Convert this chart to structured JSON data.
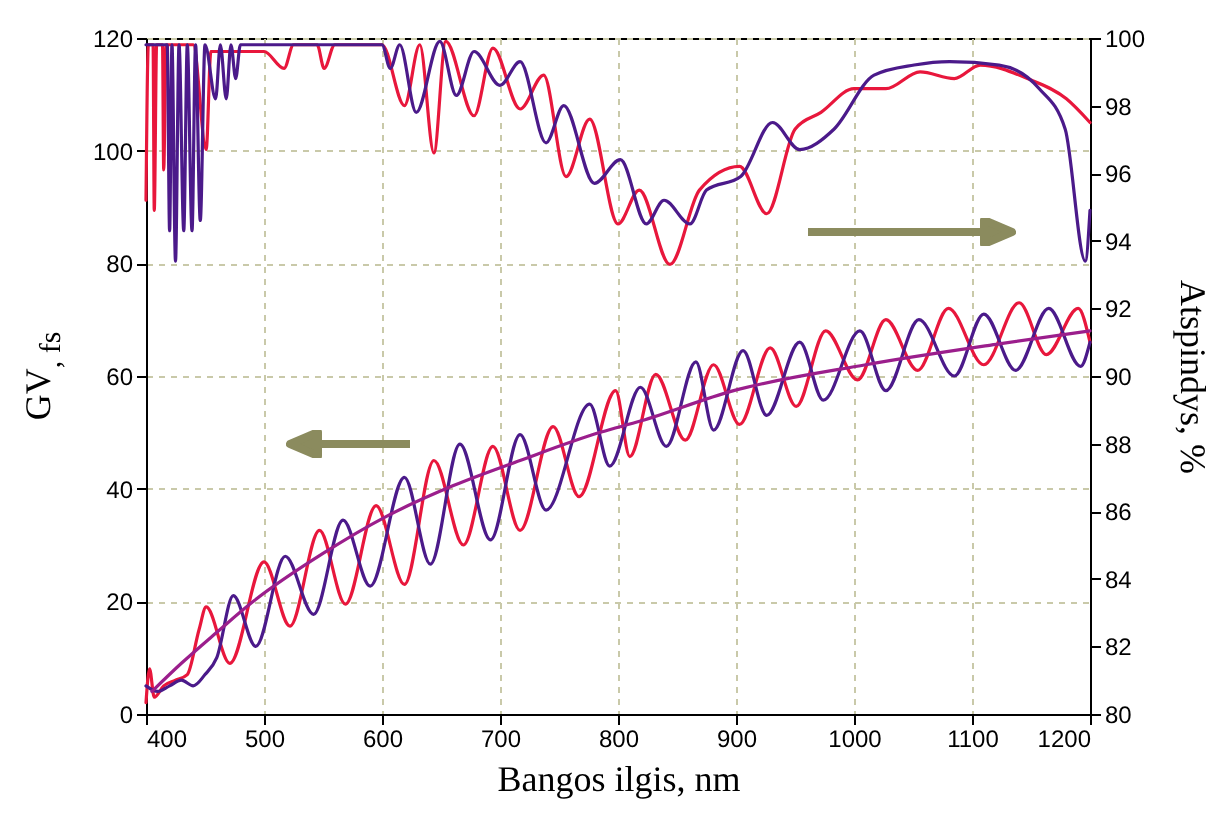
{
  "chart_data": {
    "type": "line",
    "xlabel": "Bangos ilgis, nm",
    "ylabel": "GV$_{, fs}$",
    "y2label": "Atspindys, %",
    "xlim": [
      400,
      1200
    ],
    "xticks": [
      400,
      500,
      600,
      700,
      800,
      900,
      1000,
      1100,
      1200
    ],
    "ylim": [
      0,
      120
    ],
    "yticks": [
      0,
      20,
      40,
      60,
      80,
      100,
      120
    ],
    "y2lim": [
      80,
      100
    ],
    "y2ticks": [
      80,
      82,
      84,
      86,
      88,
      90,
      92,
      94,
      96,
      98,
      100
    ],
    "grid": true,
    "series": [
      {
        "color": "#e8173c",
        "x": [
          400,
          403,
          407,
          415,
          425,
          435,
          445,
          451,
          471,
          500,
          522,
          547,
          569,
          595,
          619,
          644,
          669,
          694,
          717,
          745,
          767,
          798,
          810,
          832,
          857,
          881,
          903,
          929,
          951,
          976,
          1003,
          1027,
          1054,
          1080,
          1110,
          1140,
          1163,
          1190,
          1200
        ],
        "values": [
          2,
          8,
          3,
          5,
          6,
          7,
          15,
          19,
          9,
          27,
          15.6,
          32.6,
          19.5,
          37,
          23,
          45,
          30,
          47.5,
          32.6,
          51,
          38.6,
          57.4,
          45.7,
          60.3,
          48.6,
          62,
          51.4,
          65,
          54.6,
          68,
          59.3,
          70,
          61,
          72,
          62,
          73,
          63.8,
          72,
          66
        ]
      },
      {
        "color": "#4b1a8a",
        "x": [
          400,
          410,
          420,
          430,
          440,
          450,
          460,
          474,
          493,
          518,
          542,
          567,
          590,
          619,
          641,
          666,
          692,
          717,
          739,
          776,
          793,
          819,
          841,
          866,
          881,
          906,
          926,
          954,
          974,
          1005,
          1027,
          1055,
          1085,
          1110,
          1137,
          1165,
          1192,
          1200
        ],
        "values": [
          5,
          4,
          5,
          6,
          5,
          7,
          10,
          21,
          12,
          28,
          17.7,
          34.4,
          22.7,
          42,
          26.6,
          47.9,
          30.9,
          49.6,
          36.2,
          55,
          44,
          58,
          47.5,
          62.5,
          50.4,
          64.5,
          53,
          66,
          55.7,
          68,
          57.4,
          70,
          60,
          71,
          61,
          72,
          61.7,
          66
        ]
      },
      {
        "color": "#9b1e8c",
        "x": [
          405,
          430,
          460,
          491,
          550,
          603,
          660,
          717,
          785,
          819,
          898,
          1010,
          1123,
          1200
        ],
        "values": [
          4,
          9,
          14.5,
          20,
          28.5,
          35,
          40.5,
          45,
          50,
          52,
          57.4,
          62,
          65.7,
          68
        ]
      },
      {
        "color": "#e8173c",
        "axis": "y2",
        "x": [
          400,
          402,
          406,
          407,
          409,
          414,
          415,
          417,
          440,
          451,
          455,
          500,
          517,
          525,
          545,
          551,
          560,
          600,
          619,
          632,
          644,
          654,
          678,
          694,
          717,
          737,
          756,
          776,
          800,
          818,
          844,
          869,
          903,
          926,
          950,
          972,
          1000,
          1027,
          1056,
          1085,
          1107,
          1147,
          1180,
          1200
        ],
        "values": [
          95.2,
          99.8,
          99.8,
          94.9,
          99.8,
          99.8,
          96.1,
          99.8,
          99.8,
          96.7,
          99.6,
          99.6,
          99.1,
          99.8,
          99.8,
          99.1,
          99.8,
          99.8,
          98.0,
          99.8,
          96.6,
          99.9,
          97.7,
          99.7,
          97.9,
          98.9,
          95.9,
          97.6,
          94.5,
          95.5,
          93.3,
          95.5,
          96.2,
          94.8,
          97.3,
          97.8,
          98.5,
          98.5,
          99.0,
          98.8,
          99.2,
          98.8,
          98.2,
          97.5
        ]
      },
      {
        "color": "#4b1a8a",
        "axis": "y2",
        "x": [
          400,
          418,
          420,
          422,
          425,
          428,
          432,
          435,
          439,
          442,
          446,
          450,
          459,
          463,
          468,
          472,
          476,
          480,
          600,
          607,
          615,
          629,
          649,
          663,
          678,
          700,
          717,
          739,
          754,
          780,
          802,
          824,
          839,
          861,
          875,
          904,
          931,
          954,
          983,
          1017,
          1051,
          1081,
          1123,
          1157,
          1179,
          1196,
          1200
        ],
        "values": [
          99.8,
          99.8,
          94.3,
          99.8,
          93.4,
          99.8,
          94.3,
          99.8,
          94.3,
          99.8,
          94.6,
          99.8,
          98.2,
          99.8,
          98.2,
          99.8,
          98.8,
          99.8,
          99.8,
          99.1,
          99.8,
          97.8,
          99.9,
          98.3,
          99.6,
          98.6,
          99.3,
          96.9,
          98.0,
          95.7,
          96.4,
          94.5,
          95.2,
          94.5,
          95.5,
          95.9,
          97.5,
          96.7,
          97.3,
          98.9,
          99.2,
          99.3,
          99.2,
          98.5,
          97.3,
          93.4,
          94.9
        ]
      }
    ]
  }
}
